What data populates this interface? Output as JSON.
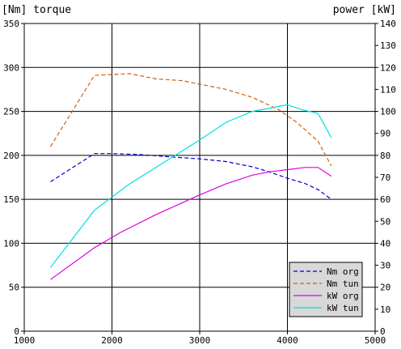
{
  "chart_data": {
    "type": "line",
    "title_left": "[Nm]  torque",
    "title_right": "power [kW]",
    "x_ticks": [
      1000,
      2000,
      3000,
      4000,
      5000
    ],
    "x_range": [
      1000,
      5000
    ],
    "y_left_ticks": [
      0,
      50,
      100,
      150,
      200,
      250,
      300,
      350
    ],
    "y_left_range": [
      0,
      350
    ],
    "y_right_ticks": [
      0,
      10,
      20,
      30,
      40,
      50,
      60,
      70,
      80,
      90,
      100,
      110,
      120,
      130,
      140
    ],
    "y_right_range": [
      0,
      140
    ],
    "grid": true,
    "legend_position": "bottom-right",
    "series": [
      {
        "name": "Nm org",
        "axis": "left",
        "color": "#0000cc",
        "dash": "dashed",
        "x": [
          1300,
          1800,
          2000,
          2300,
          2700,
          3000,
          3300,
          3600,
          3800,
          4000,
          4200,
          4350,
          4500
        ],
        "y": [
          170,
          202,
          202,
          201,
          198,
          196,
          193,
          187,
          181,
          174,
          168,
          161,
          150
        ]
      },
      {
        "name": "Nm tun",
        "axis": "left",
        "color": "#d06010",
        "dash": "dashed",
        "x": [
          1300,
          1800,
          2000,
          2200,
          2500,
          2800,
          3000,
          3300,
          3600,
          3900,
          4100,
          4350,
          4500
        ],
        "y": [
          210,
          291,
          292,
          293,
          287,
          285,
          281,
          275,
          266,
          252,
          238,
          216,
          188
        ]
      },
      {
        "name": "kW org",
        "axis": "right",
        "color": "#e000e0",
        "dash": "solid",
        "x": [
          1300,
          1800,
          2100,
          2500,
          3000,
          3300,
          3600,
          3800,
          4000,
          4200,
          4350,
          4500
        ],
        "y": [
          23.5,
          38,
          45,
          53,
          62,
          67,
          71,
          72.5,
          73.5,
          74.5,
          74.5,
          70.5
        ]
      },
      {
        "name": "kW tun",
        "axis": "right",
        "color": "#00e0e0",
        "dash": "solid",
        "x": [
          1300,
          1800,
          2200,
          2600,
          3000,
          3300,
          3600,
          3800,
          4000,
          4150,
          4350,
          4500
        ],
        "y": [
          29,
          55,
          67,
          77,
          87,
          95,
          100,
          101.5,
          103,
          101,
          99,
          88
        ]
      }
    ]
  }
}
